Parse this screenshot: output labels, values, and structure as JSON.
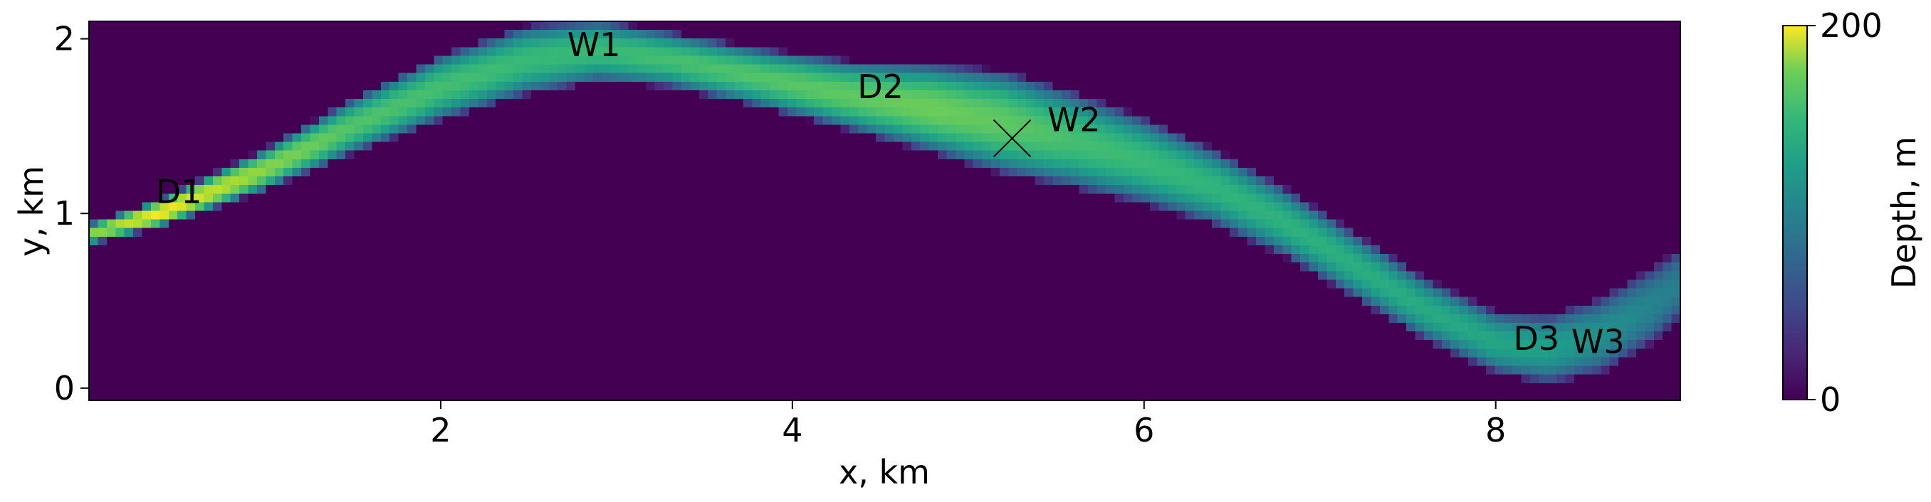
{
  "chart_data": {
    "type": "heatmap",
    "xlabel": "x, km",
    "ylabel": "y, km",
    "xlim": [
      0.0,
      9.05
    ],
    "ylim": [
      -0.07,
      2.1
    ],
    "xticks": [
      2,
      4,
      6,
      8
    ],
    "yticks": [
      0,
      1,
      2
    ],
    "colorbar": {
      "label": "Depth, m",
      "min": 0,
      "max": 200,
      "ticks": [
        0,
        200
      ],
      "colormap": "viridis"
    },
    "background_value": 0,
    "channel": {
      "x": [
        0.0,
        0.4,
        1.0,
        1.5,
        2.0,
        2.5,
        2.9,
        3.3,
        3.8,
        4.3,
        4.8,
        5.2,
        5.6,
        6.0,
        6.4,
        6.8,
        7.2,
        7.6,
        8.0,
        8.3,
        8.6,
        8.9,
        9.05
      ],
      "y": [
        0.88,
        1.0,
        1.25,
        1.5,
        1.72,
        1.88,
        1.93,
        1.88,
        1.78,
        1.68,
        1.6,
        1.52,
        1.42,
        1.3,
        1.15,
        0.95,
        0.7,
        0.45,
        0.26,
        0.22,
        0.3,
        0.48,
        0.6
      ],
      "depth": [
        160,
        200,
        165,
        145,
        140,
        135,
        135,
        140,
        145,
        150,
        155,
        150,
        140,
        135,
        130,
        128,
        125,
        122,
        118,
        112,
        100,
        90,
        85
      ],
      "half_width": [
        0.06,
        0.08,
        0.12,
        0.16,
        0.19,
        0.2,
        0.18,
        0.16,
        0.17,
        0.2,
        0.26,
        0.3,
        0.28,
        0.25,
        0.22,
        0.2,
        0.19,
        0.18,
        0.18,
        0.2,
        0.22,
        0.22,
        0.2
      ]
    },
    "annotations": [
      {
        "text": "D1",
        "x": 0.38,
        "y": 1.06
      },
      {
        "text": "W1",
        "x": 2.72,
        "y": 1.9
      },
      {
        "text": "D2",
        "x": 4.37,
        "y": 1.66
      },
      {
        "text": "W2",
        "x": 5.45,
        "y": 1.47
      },
      {
        "text": "D3",
        "x": 8.1,
        "y": 0.22
      },
      {
        "text": "W3",
        "x": 8.43,
        "y": 0.2
      }
    ],
    "markers": [
      {
        "symbol": "x",
        "x": 5.25,
        "y": 1.43
      }
    ]
  }
}
